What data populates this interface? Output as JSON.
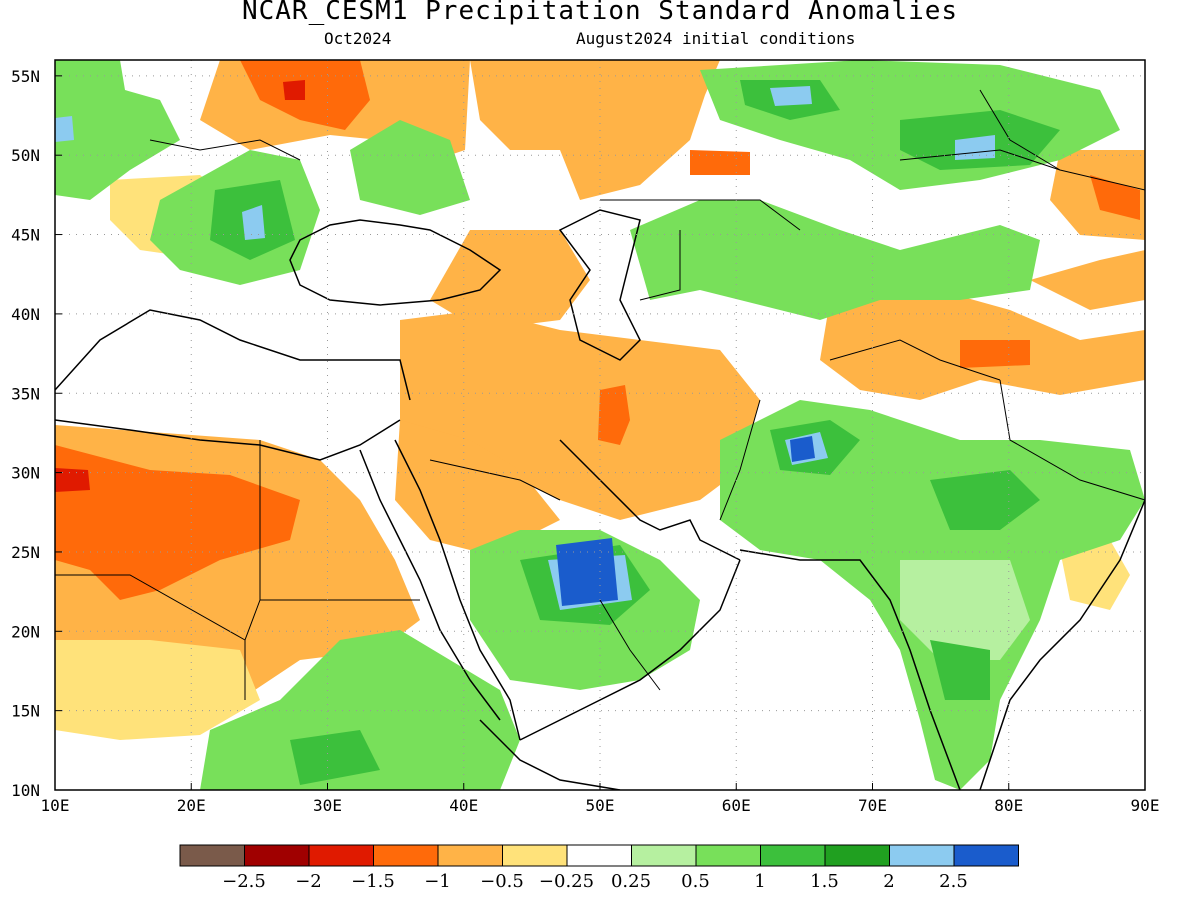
{
  "title": "NCAR_CESM1 Precipitation Standard Anomalies",
  "subtitle_left": "Oct2024",
  "subtitle_right": "August2024 initial conditions",
  "map": {
    "lon_range": [
      10,
      90
    ],
    "lat_range": [
      10,
      56
    ],
    "lon_ticks": [
      "10E",
      "20E",
      "30E",
      "40E",
      "50E",
      "60E",
      "70E",
      "80E",
      "90E"
    ],
    "lat_ticks": [
      "10N",
      "15N",
      "20N",
      "25N",
      "30N",
      "35N",
      "40N",
      "45N",
      "50N",
      "55N"
    ],
    "grid": "dotted"
  },
  "colorbar": {
    "colors": [
      "#7a5a4a",
      "#a00000",
      "#e01a00",
      "#ff6a0a",
      "#ffb347",
      "#ffe27a",
      "#ffffff",
      "#b6f0a0",
      "#78e05a",
      "#3cc03c",
      "#20a020",
      "#8ccbf0",
      "#1a5ccc"
    ],
    "labels": [
      "−2.5",
      "−2",
      "−1.5",
      "−1",
      "−0.5",
      "−0.25",
      "0.25",
      "0.5",
      "1",
      "1.5",
      "2",
      "2.5"
    ]
  }
}
